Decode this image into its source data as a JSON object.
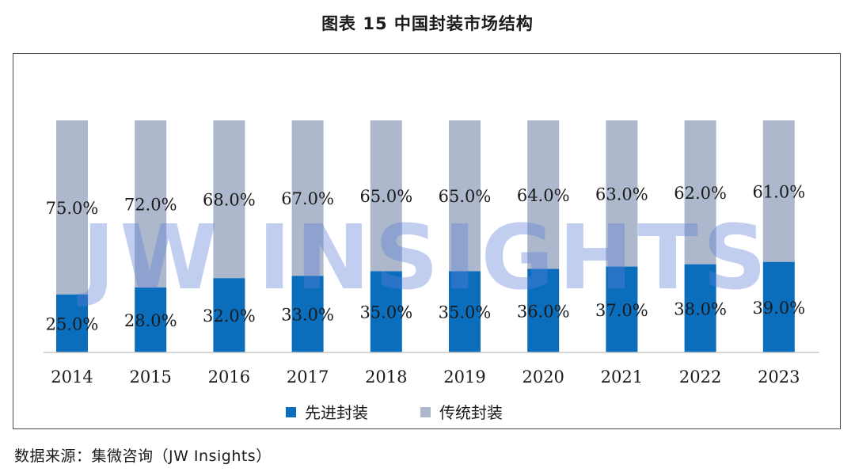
{
  "title": "图表 15 中国封装市场结构",
  "source": "数据来源：集微咨询（JW Insights）",
  "watermark": "JW INSIGHTS",
  "colors": {
    "advanced": "#0a6ebd",
    "traditional": "#adb8cc",
    "watermark": "#5b7fd6",
    "axis": "#c8c8c8",
    "text": "#1a1a1a"
  },
  "chart_data": {
    "type": "bar",
    "stacked": true,
    "percent_stacked": true,
    "categories": [
      "2014",
      "2015",
      "2016",
      "2017",
      "2018",
      "2019",
      "2020",
      "2021",
      "2022",
      "2023"
    ],
    "series": [
      {
        "name": "先进封装",
        "values": [
          25.0,
          28.0,
          32.0,
          33.0,
          35.0,
          35.0,
          36.0,
          37.0,
          38.0,
          39.0
        ],
        "labels": [
          "25.0%",
          "28.0%",
          "32.0%",
          "33.0%",
          "35.0%",
          "35.0%",
          "36.0%",
          "37.0%",
          "38.0%",
          "39.0%"
        ],
        "color": "#0a6ebd"
      },
      {
        "name": "传统封装",
        "values": [
          75.0,
          72.0,
          68.0,
          67.0,
          65.0,
          65.0,
          64.0,
          63.0,
          62.0,
          61.0
        ],
        "labels": [
          "75.0%",
          "72.0%",
          "68.0%",
          "67.0%",
          "65.0%",
          "65.0%",
          "64.0%",
          "63.0%",
          "62.0%",
          "61.0%"
        ],
        "color": "#adb8cc"
      }
    ],
    "ylim": [
      0,
      100
    ],
    "grid": false,
    "legend_position": "bottom"
  }
}
